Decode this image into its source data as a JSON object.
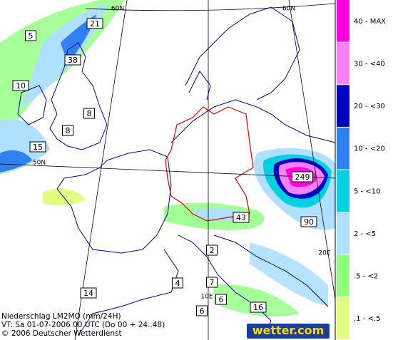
{
  "footer": {
    "title": "Niederschlag LM2MO (mm/24H)",
    "valid_time": "VT: Sa 01-07-2006 00 UTC (Do 00 + 24..48)",
    "copyright": "© 2006 Deutscher Wetterdienst",
    "logo": "wetter.com"
  },
  "map_labels": [
    5,
    21,
    38,
    10,
    8,
    8,
    15,
    249,
    43,
    90,
    2,
    4,
    7,
    14,
    6,
    6,
    16
  ],
  "grid_labels": [
    "60N",
    "60N",
    "50N",
    "10E",
    "20E"
  ],
  "legend": [
    {
      "label": "40 - MAX",
      "color": "#ff00e0"
    },
    {
      "label": "30 - <40",
      "color": "#ff80ff"
    },
    {
      "label": "20 - <30",
      "color": "#0000c0"
    },
    {
      "label": "10 - <20",
      "color": "#3080f0"
    },
    {
      "label": "5 - <10",
      "color": "#00d0e0"
    },
    {
      "label": "2 - <5",
      "color": "#b0e0ff"
    },
    {
      "label": ".5 - <2",
      "color": "#90ff80"
    },
    {
      "label": ".1 - <.5",
      "color": "#e0ff80"
    }
  ]
}
